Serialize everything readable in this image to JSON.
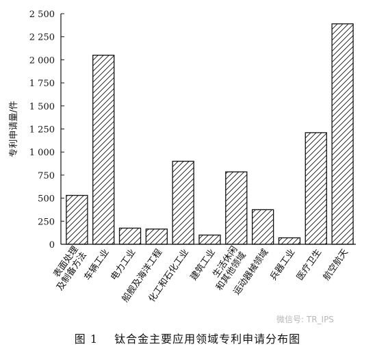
{
  "chart_data": {
    "type": "bar",
    "categories": [
      [
        "表面处理",
        "及制备方法"
      ],
      [
        "车辆工业"
      ],
      [
        "电力工业"
      ],
      [
        "船舰及海洋工程"
      ],
      [
        "化工和石化工业"
      ],
      [
        "建筑工业"
      ],
      [
        "生活休闲",
        "和其他领域"
      ],
      [
        "运动器械领域"
      ],
      [
        "兵器工业"
      ],
      [
        "医疗卫生"
      ],
      [
        "航空航天"
      ]
    ],
    "values": [
      530,
      2050,
      175,
      165,
      900,
      100,
      785,
      375,
      70,
      1210,
      2390
    ],
    "ylabel": "专利申请量/件",
    "ylim": [
      0,
      2500
    ],
    "yticks": [
      0,
      250,
      500,
      750,
      1000,
      1250,
      1500,
      1750,
      2000,
      2250,
      2500
    ],
    "ytick_labels": [
      "0",
      "250",
      "500",
      "750",
      "1 000",
      "1 250",
      "1 500",
      "1 750",
      "2 000",
      "2 250",
      "2 500"
    ],
    "bar_pattern": "diagonal-hatch",
    "grid": false
  },
  "caption": {
    "number": "图 1",
    "text": "钛合金主要应用领域专利申请分布图"
  },
  "watermark": {
    "text": "微信号: TR_IPS"
  }
}
